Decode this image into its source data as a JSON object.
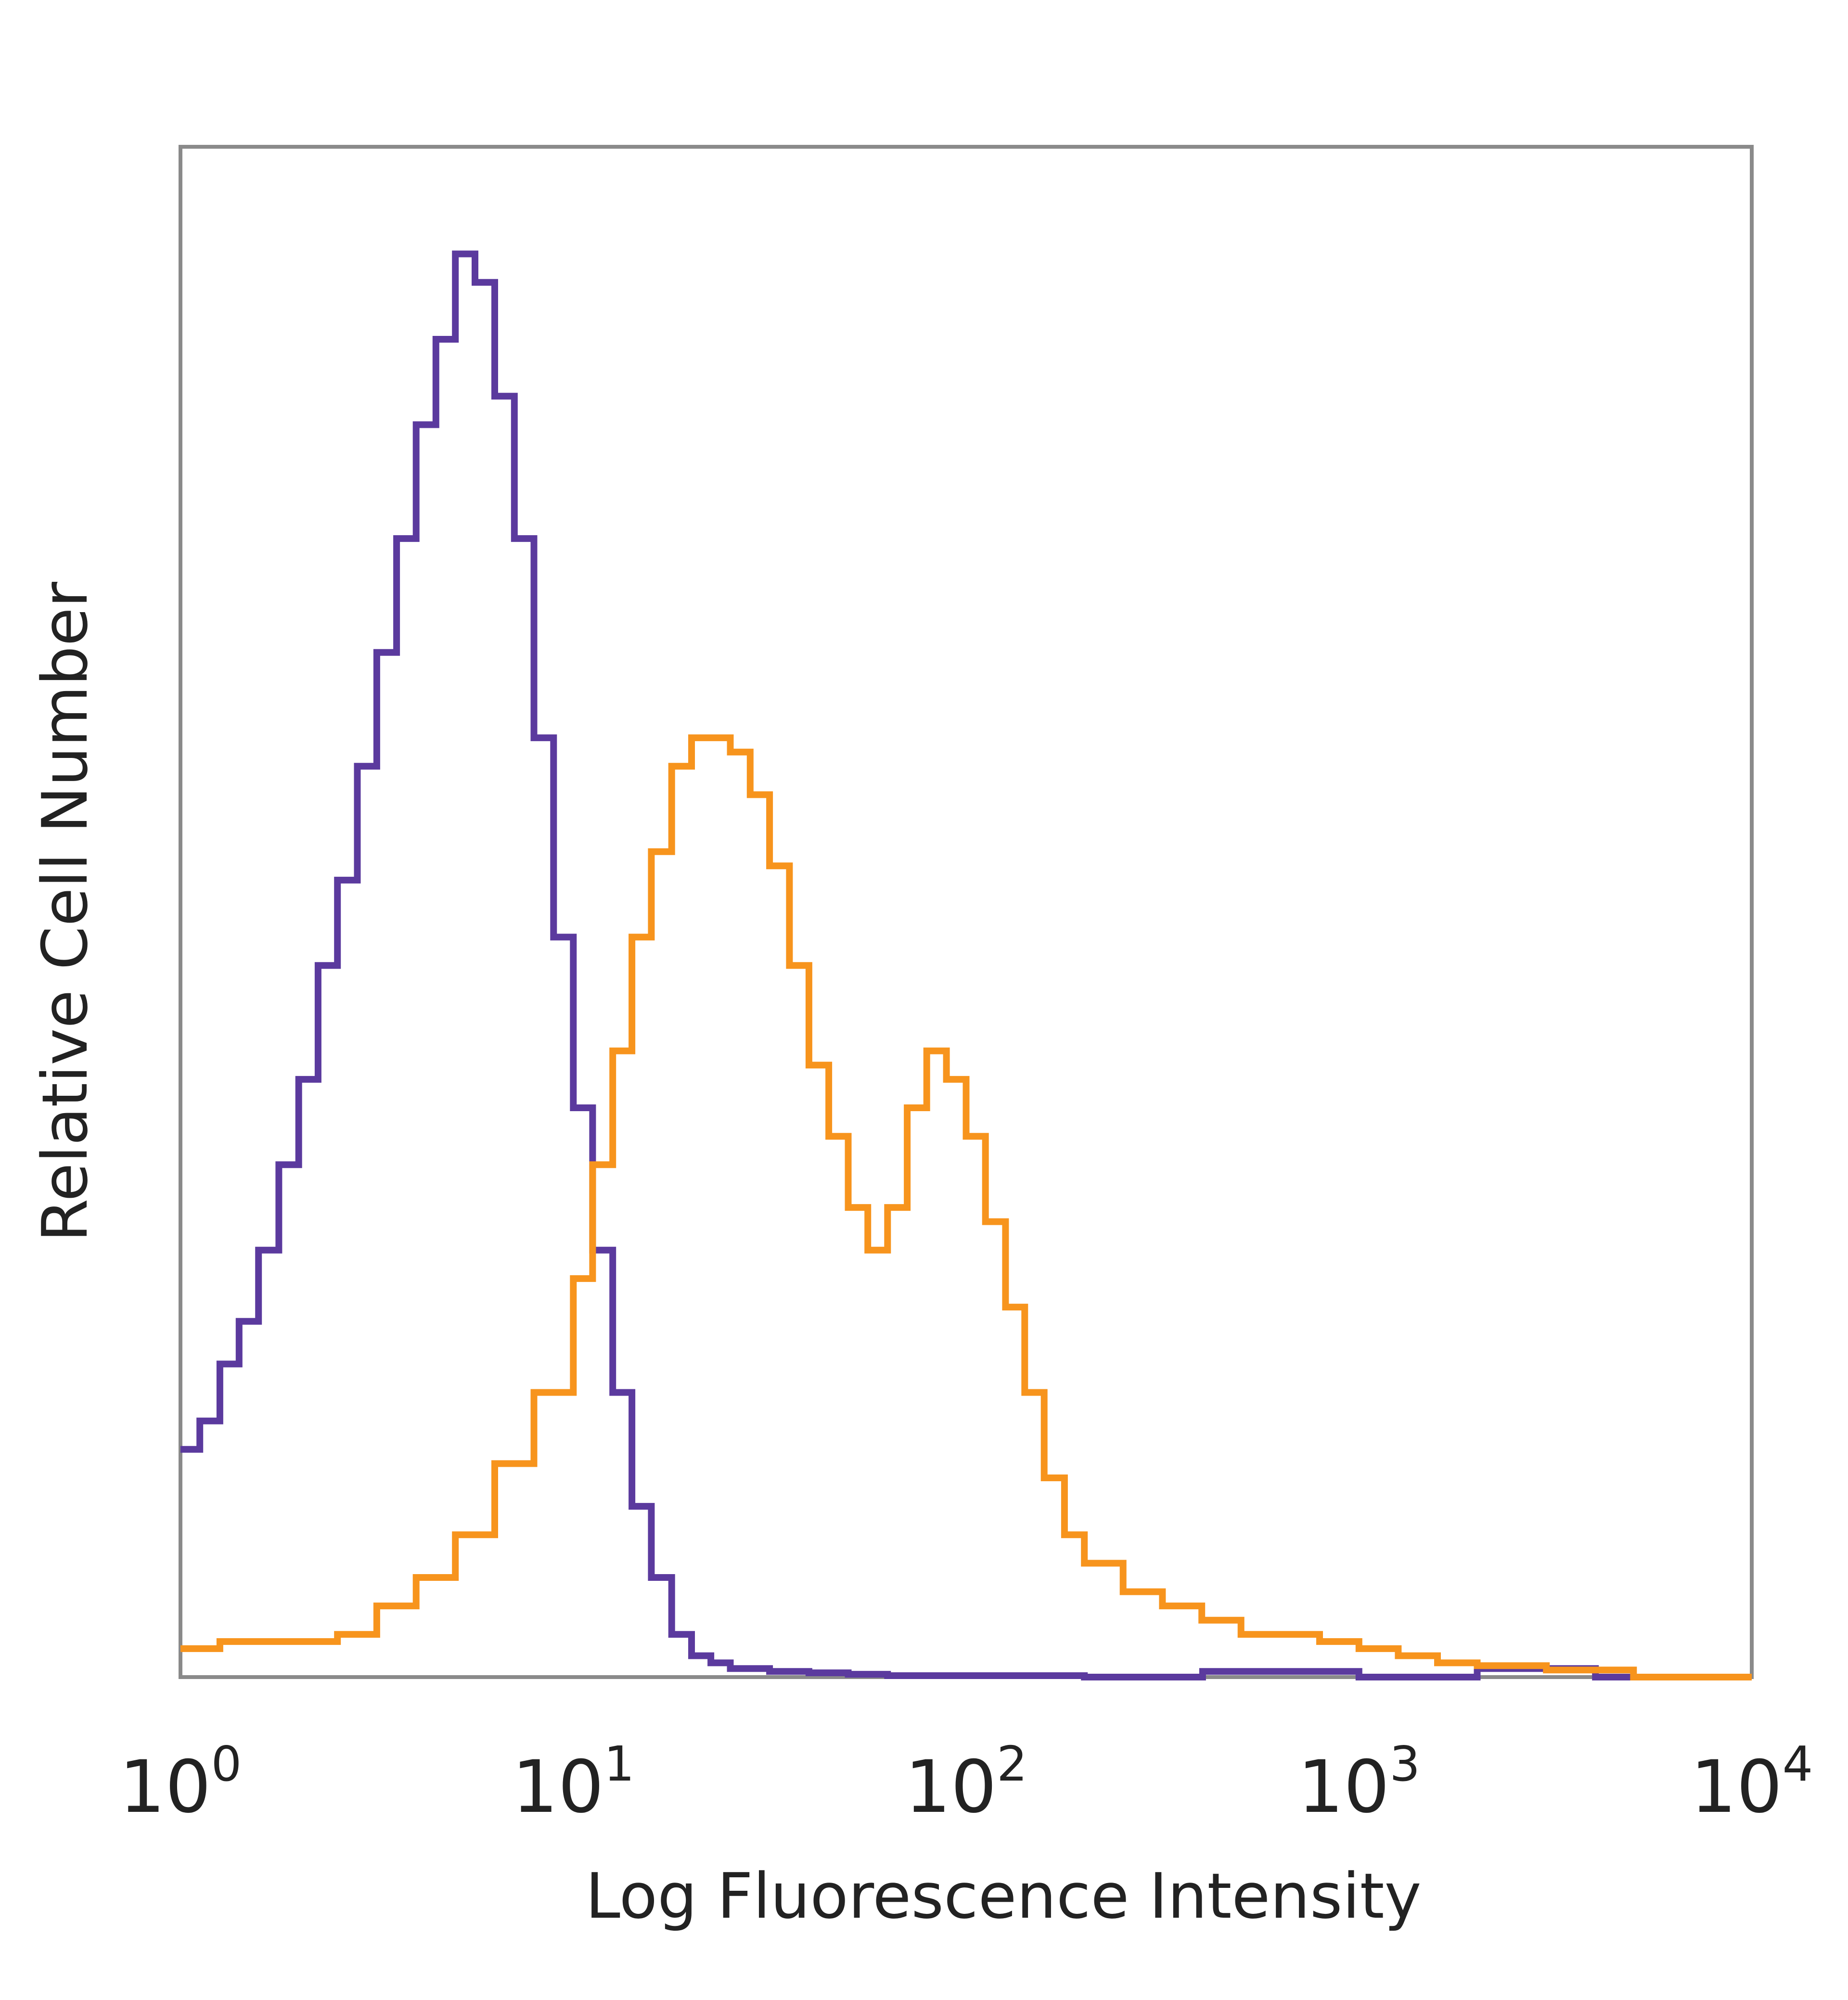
{
  "chart_data": {
    "type": "line",
    "title": "",
    "xlabel": "Log Fluorescence Intensity",
    "ylabel": "Relative Cell Number",
    "x_scale": "log",
    "xlim": [
      1,
      10000
    ],
    "ylim": [
      0,
      1
    ],
    "x_ticks": [
      {
        "base": "10",
        "exp": "0"
      },
      {
        "base": "10",
        "exp": "1"
      },
      {
        "base": "10",
        "exp": "2"
      },
      {
        "base": "10",
        "exp": "3"
      },
      {
        "base": "10",
        "exp": "4"
      }
    ],
    "grid": false,
    "legend": "none",
    "series": [
      {
        "color": "#5b3a9e",
        "x": [
          1.0,
          1.12,
          1.26,
          1.41,
          1.58,
          1.78,
          2.0,
          2.24,
          2.51,
          2.82,
          3.16,
          3.55,
          3.98,
          4.47,
          5.01,
          5.62,
          6.31,
          7.08,
          7.94,
          8.91,
          10.0,
          11.2,
          12.6,
          14.1,
          15.8,
          17.8,
          20.0,
          22.4,
          25.1,
          31.6,
          39.8,
          50.1,
          63.1,
          79.4,
          100,
          200,
          400,
          1000,
          2000,
          4000,
          10000
        ],
        "y": [
          0.16,
          0.18,
          0.22,
          0.25,
          0.3,
          0.36,
          0.42,
          0.5,
          0.56,
          0.64,
          0.72,
          0.8,
          0.88,
          0.94,
          1.0,
          0.98,
          0.9,
          0.8,
          0.66,
          0.52,
          0.4,
          0.3,
          0.2,
          0.12,
          0.07,
          0.03,
          0.015,
          0.01,
          0.006,
          0.004,
          0.003,
          0.002,
          0.001,
          0.001,
          0.001,
          0.0,
          0.004,
          0.0,
          0.006,
          0.0,
          0.0
        ]
      },
      {
        "color": "#f7941d",
        "x": [
          1.0,
          1.26,
          1.58,
          2.0,
          2.51,
          3.16,
          3.98,
          5.01,
          6.31,
          7.94,
          10.0,
          11.2,
          12.6,
          14.1,
          15.8,
          17.8,
          20.0,
          22.4,
          25.1,
          28.2,
          31.6,
          35.5,
          39.8,
          44.7,
          50.1,
          56.2,
          63.1,
          70.8,
          79.4,
          89.1,
          100,
          112,
          126,
          141,
          158,
          178,
          200,
          251,
          316,
          398,
          501,
          631,
          794,
          1000,
          1259,
          1585,
          2000,
          3000,
          5000,
          10000
        ],
        "y": [
          0.02,
          0.025,
          0.025,
          0.025,
          0.03,
          0.05,
          0.07,
          0.1,
          0.15,
          0.2,
          0.28,
          0.36,
          0.44,
          0.52,
          0.58,
          0.64,
          0.66,
          0.66,
          0.65,
          0.62,
          0.57,
          0.5,
          0.43,
          0.38,
          0.33,
          0.3,
          0.33,
          0.4,
          0.44,
          0.42,
          0.38,
          0.32,
          0.26,
          0.2,
          0.14,
          0.1,
          0.08,
          0.06,
          0.05,
          0.04,
          0.03,
          0.03,
          0.025,
          0.02,
          0.015,
          0.01,
          0.008,
          0.005,
          0.0,
          0.0
        ]
      }
    ]
  }
}
